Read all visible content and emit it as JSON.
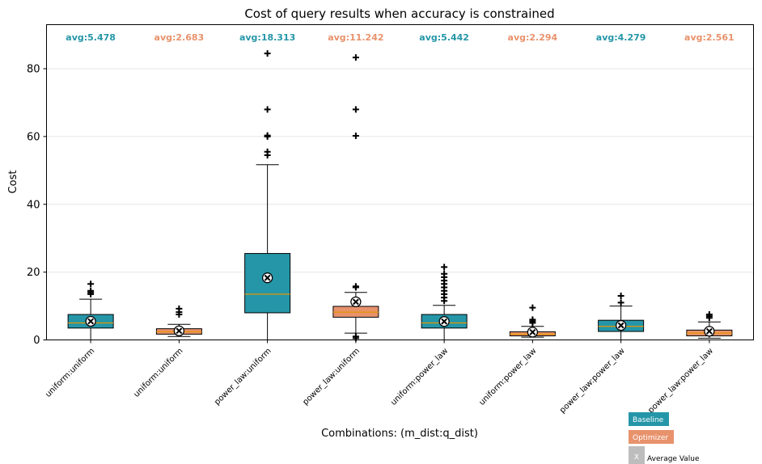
{
  "chart_data": {
    "type": "box",
    "title": "Cost of query results when accuracy is constrained",
    "xlabel": "Combinations: (m_dist:q_dist)",
    "ylabel": "Cost",
    "ylim": [
      0,
      93
    ],
    "yticks": [
      0,
      20,
      40,
      60,
      80
    ],
    "grid": "horizontal",
    "categories": [
      "uniform:uniform",
      "uniform:uniform",
      "power_law:uniform",
      "power_law:uniform",
      "uniform:power_law",
      "uniform:power_law",
      "power_law:power_law",
      "power_law:power_law"
    ],
    "series_colors": {
      "Baseline": "#2596a8",
      "Optimizer": "#e8926c"
    },
    "boxes": [
      {
        "category": "uniform:uniform",
        "series": "Baseline",
        "min": 0,
        "q1": 3.5,
        "median": 5.0,
        "q3": 7.5,
        "max": 12.0,
        "mean": 5.478,
        "avg_label": "avg:5.478",
        "outliers": [
          13.5,
          14.0,
          14.5,
          16.5
        ]
      },
      {
        "category": "uniform:uniform",
        "series": "Optimizer",
        "min": 1.0,
        "q1": 1.7,
        "median": 2.4,
        "q3": 3.3,
        "max": 4.6,
        "mean": 2.683,
        "avg_label": "avg:2.683",
        "outliers": [
          7.5,
          8.2,
          9.2
        ]
      },
      {
        "category": "power_law:uniform",
        "series": "Baseline",
        "min": 0,
        "q1": 8.0,
        "median": 13.5,
        "q3": 25.5,
        "max": 51.7,
        "mean": 18.313,
        "avg_label": "avg:18.313",
        "outliers": [
          54.5,
          55.5,
          60.0,
          60.3,
          68.0,
          84.5
        ]
      },
      {
        "category": "power_law:uniform",
        "series": "Optimizer",
        "min": 2.0,
        "q1": 6.7,
        "median": 8.2,
        "q3": 9.9,
        "max": 14.0,
        "mean": 11.242,
        "avg_label": "avg:11.242",
        "outliers": [
          0.5,
          1.0,
          15.5,
          15.8,
          60.2,
          68.0,
          83.3
        ]
      },
      {
        "category": "uniform:power_law",
        "series": "Baseline",
        "min": 0,
        "q1": 3.5,
        "median": 5.0,
        "q3": 7.5,
        "max": 10.2,
        "mean": 5.442,
        "avg_label": "avg:5.442",
        "outliers": [
          11.5,
          12.5,
          13.5,
          14.5,
          15.5,
          16.5,
          17.5,
          18.5,
          19.5,
          21.5
        ]
      },
      {
        "category": "uniform:power_law",
        "series": "Optimizer",
        "min": 0.8,
        "q1": 1.2,
        "median": 1.7,
        "q3": 2.4,
        "max": 4.0,
        "mean": 2.294,
        "avg_label": "avg:2.294",
        "outliers": [
          5.0,
          5.5,
          6.0,
          9.5
        ]
      },
      {
        "category": "power_law:power_law",
        "series": "Baseline",
        "min": 0,
        "q1": 2.5,
        "median": 4.0,
        "q3": 5.8,
        "max": 10.0,
        "mean": 4.279,
        "avg_label": "avg:4.279",
        "outliers": [
          11.0,
          13.0
        ]
      },
      {
        "category": "power_law:power_law",
        "series": "Optimizer",
        "min": 0.5,
        "q1": 1.2,
        "median": 2.0,
        "q3": 2.9,
        "max": 5.3,
        "mean": 2.561,
        "avg_label": "avg:2.561",
        "outliers": [
          6.5,
          7.0,
          7.5
        ]
      }
    ],
    "legend": {
      "position": "bottom-right",
      "items": [
        {
          "label": "Baseline",
          "color": "#2596a8"
        },
        {
          "label": "Optimizer",
          "color": "#e8926c"
        },
        {
          "label": "Average Value",
          "marker": "X",
          "color": "#bdbdbd"
        }
      ]
    }
  }
}
